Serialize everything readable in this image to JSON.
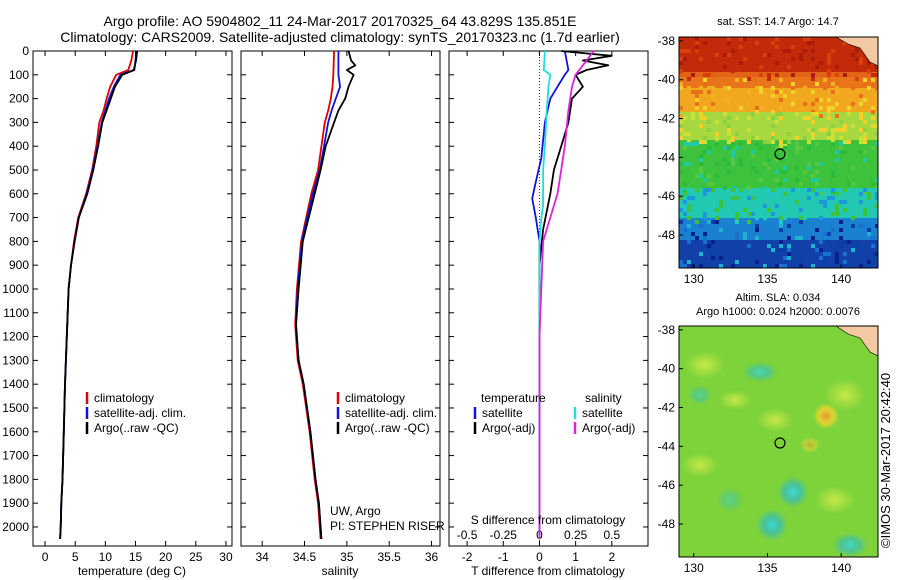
{
  "title": {
    "line1": "Argo profile: AO 5904802_11 24-Mar-2017 20170325_64 43.829S 135.851E",
    "line2": "Climatology: CARS2009. Satellite-adjusted climatology: synTS_20170323.nc (1.7d earlier)"
  },
  "side_text": "©IMOS 30-Mar-2017 20:42:40",
  "colors": {
    "climatology": "#dd0000",
    "satellite": "#1111dd",
    "argo": "#000000",
    "cyan": "#22dddd",
    "magenta": "#dd22dd"
  },
  "chart_data": [
    {
      "type": "line",
      "name": "temperature-profile",
      "xlabel": "temperature (deg C)",
      "ylabel": "",
      "xlim": [
        -2,
        31
      ],
      "ylim": [
        2080,
        0
      ],
      "xticks": [
        0,
        5,
        10,
        15,
        20,
        25,
        30
      ],
      "yticks": [
        0,
        100,
        200,
        300,
        400,
        500,
        600,
        700,
        800,
        900,
        1000,
        1100,
        1200,
        1300,
        1400,
        1500,
        1600,
        1700,
        1800,
        1900,
        2000
      ],
      "legend": [
        "climatology",
        "satellite-adj. clim.",
        "Argo(..raw -QC)"
      ],
      "series": [
        {
          "name": "climatology",
          "color": "#dd0000",
          "x": [
            14.6,
            14.3,
            13.8,
            11.8,
            10.8,
            10.2,
            9.7,
            9.0,
            8.5,
            7.8,
            6.8,
            5.5,
            4.8,
            4.3,
            3.9,
            3.6,
            3.3,
            3.1,
            2.9,
            2.7,
            2.6,
            2.5
          ],
          "y": [
            0,
            40,
            80,
            100,
            150,
            200,
            250,
            300,
            400,
            500,
            600,
            700,
            800,
            900,
            1000,
            1200,
            1400,
            1600,
            1800,
            1900,
            2000,
            2050
          ]
        },
        {
          "name": "satellite-adj. clim.",
          "color": "#1111dd",
          "x": [
            15.3,
            15.1,
            14.7,
            12.5,
            11.4,
            10.6,
            10.0,
            9.4,
            8.7,
            7.9,
            6.9,
            5.6,
            4.9,
            4.3,
            3.9,
            3.6,
            3.3,
            3.1,
            2.9,
            2.7,
            2.6,
            2.5
          ],
          "y": [
            0,
            40,
            80,
            100,
            150,
            200,
            250,
            300,
            400,
            500,
            600,
            700,
            800,
            900,
            1000,
            1200,
            1400,
            1600,
            1800,
            1900,
            2000,
            2050
          ]
        },
        {
          "name": "Argo(..raw -QC)",
          "color": "#000000",
          "x": [
            15.2,
            15.0,
            14.8,
            12.8,
            11.6,
            10.9,
            10.2,
            9.5,
            8.8,
            8.0,
            7.0,
            5.6,
            4.9,
            4.3,
            3.9,
            3.6,
            3.3,
            3.1,
            2.9,
            2.7,
            2.6,
            2.5
          ],
          "y": [
            0,
            40,
            80,
            100,
            150,
            200,
            250,
            300,
            400,
            500,
            600,
            700,
            800,
            900,
            1000,
            1200,
            1400,
            1600,
            1800,
            1900,
            2000,
            2050
          ]
        }
      ]
    },
    {
      "type": "line",
      "name": "salinity-profile",
      "xlabel": "salinity",
      "xlim": [
        33.75,
        36.1
      ],
      "ylim": [
        2080,
        0
      ],
      "xticks": [
        34,
        34.5,
        35,
        35.5,
        36
      ],
      "legend": [
        "climatology",
        "satellite-adj. clim.",
        "Argo(..raw -QC)"
      ],
      "annotation": [
        "UW, Argo",
        "PI: STEPHEN RISER"
      ],
      "series": [
        {
          "name": "climatology",
          "color": "#dd0000",
          "x": [
            34.85,
            34.84,
            34.83,
            34.81,
            34.78,
            34.74,
            34.7,
            34.66,
            34.58,
            34.52,
            34.46,
            34.41,
            34.39,
            34.42,
            34.48,
            34.56,
            34.62,
            34.66,
            34.69
          ],
          "y": [
            0,
            100,
            150,
            200,
            250,
            300,
            400,
            500,
            600,
            700,
            800,
            1000,
            1150,
            1300,
            1400,
            1600,
            1800,
            1900,
            2050
          ]
        },
        {
          "name": "satellite-adj. clim.",
          "color": "#1111dd",
          "x": [
            34.9,
            34.9,
            34.92,
            34.87,
            34.82,
            34.78,
            34.73,
            34.68,
            34.6,
            34.53,
            34.47,
            34.42,
            34.4,
            34.43,
            34.49,
            34.57,
            34.63,
            34.67,
            34.7
          ],
          "y": [
            0,
            100,
            150,
            200,
            250,
            300,
            400,
            500,
            600,
            700,
            800,
            1000,
            1150,
            1300,
            1400,
            1600,
            1800,
            1900,
            2050
          ]
        },
        {
          "name": "Argo(..raw -QC)",
          "color": "#000000",
          "x": [
            35.02,
            35.05,
            35.1,
            35.0,
            35.08,
            35.02,
            34.98,
            34.9,
            34.85,
            34.8,
            34.75,
            34.69,
            34.62,
            34.55,
            34.48,
            34.43,
            34.4,
            34.43,
            34.49,
            34.57,
            34.63,
            34.67,
            34.7
          ],
          "y": [
            0,
            40,
            60,
            80,
            100,
            150,
            200,
            250,
            300,
            350,
            400,
            500,
            600,
            700,
            800,
            1000,
            1150,
            1300,
            1400,
            1600,
            1800,
            1900,
            2050
          ]
        }
      ]
    },
    {
      "type": "line",
      "name": "difference-profile",
      "xlabel": "T difference from climatology",
      "top_axis_label": "S difference from climatology",
      "xlim": [
        -2.5,
        3.0
      ],
      "ylim": [
        2080,
        0
      ],
      "xticks": [
        -2,
        -1,
        0,
        1,
        2
      ],
      "top_ticks": [
        -0.5,
        -0.25,
        0,
        0.25,
        0.5
      ],
      "legend": {
        "temperature_title": "temperature",
        "salinity_title": "salinity",
        "satellite_t": "satellite",
        "argo_t": "Argo(-adj)",
        "satellite_s": "satellite",
        "argo_s": "Argo(-adj)"
      },
      "series": [
        {
          "name": "temperature satellite",
          "color": "#1111dd",
          "x": [
            0.7,
            0.75,
            0.8,
            0.7,
            0.5,
            0.3,
            0.15,
            0.05,
            -0.1,
            -0.2,
            -0.1,
            0.0,
            0.0,
            0.0,
            0.0
          ],
          "y": [
            0,
            40,
            80,
            100,
            150,
            200,
            300,
            450,
            550,
            620,
            700,
            800,
            1200,
            1600,
            2050
          ]
        },
        {
          "name": "temperature Argo(-adj)",
          "color": "#000000",
          "x": [
            0.6,
            2.0,
            1.2,
            1.9,
            1.3,
            1.0,
            1.2,
            0.9,
            0.8,
            0.6,
            0.4,
            0.3,
            0.1,
            0.0,
            0.0,
            0.0
          ],
          "y": [
            0,
            20,
            40,
            60,
            80,
            100,
            150,
            200,
            300,
            400,
            500,
            600,
            750,
            900,
            1400,
            2050
          ]
        },
        {
          "name": "salinity satellite",
          "color": "#22dddd",
          "x": [
            0.15,
            0.12,
            0.3,
            0.25,
            0.2,
            0.15,
            0.1,
            0.1,
            0.05,
            0.0,
            0.0,
            0.0
          ],
          "y": [
            0,
            80,
            100,
            150,
            250,
            400,
            500,
            650,
            700,
            800,
            1200,
            2050
          ]
        },
        {
          "name": "salinity Argo(-adj)",
          "color": "#dd22dd",
          "x": [
            1.5,
            1.2,
            1.0,
            0.9,
            0.8,
            0.7,
            0.6,
            0.5,
            0.3,
            0.1,
            0.0,
            0.0
          ],
          "y": [
            0,
            60,
            100,
            150,
            250,
            400,
            500,
            600,
            700,
            800,
            1200,
            2050
          ]
        }
      ]
    },
    {
      "type": "heatmap",
      "name": "sst-map",
      "title": "sat. SST: 14.7  Argo: 14.7",
      "xticks": [
        130,
        135,
        140
      ],
      "yticks": [
        -38,
        -40,
        -42,
        -44,
        -46,
        -48
      ],
      "xlim": [
        129,
        142.5
      ],
      "ylim": [
        -49.7,
        -37.8
      ],
      "marker": {
        "lon": 135.851,
        "lat": -43.829
      }
    },
    {
      "type": "heatmap",
      "name": "sla-map",
      "title": [
        "Altim. SLA: 0.034",
        "Argo h1000: 0.024 h2000: 0.0076"
      ],
      "xticks": [
        130,
        135,
        140
      ],
      "yticks": [
        -38,
        -40,
        -42,
        -44,
        -46,
        -48
      ],
      "xlim": [
        129,
        142.5
      ],
      "ylim": [
        -49.7,
        -37.8
      ],
      "marker": {
        "lon": 135.851,
        "lat": -43.829
      }
    }
  ]
}
